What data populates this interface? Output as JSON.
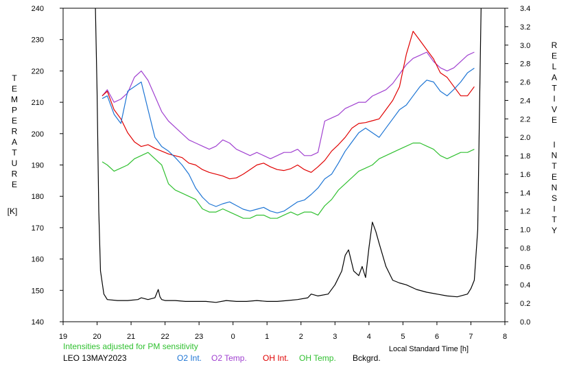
{
  "colors": {
    "o2_int": "#1c74d4",
    "o2_temp": "#a040d0",
    "oh_int": "#e00000",
    "oh_temp": "#30c030",
    "bckgrd": "#000000",
    "note": "#30c030"
  },
  "chart_data": {
    "type": "line",
    "left_axis": {
      "label_letters": [
        "T",
        "E",
        "M",
        "P",
        "E",
        "R",
        "A",
        "T",
        "U",
        "R",
        "E"
      ],
      "unit": "[K]",
      "ylim": [
        140,
        240
      ],
      "ticks": [
        "140",
        "150",
        "160",
        "170",
        "180",
        "190",
        "200",
        "210",
        "220",
        "230",
        "240"
      ]
    },
    "right_axis": {
      "label_letters_1": [
        "R",
        "E",
        "L",
        "A",
        "T",
        "I",
        "V",
        "E"
      ],
      "label_letters_2": [
        "I",
        "N",
        "T",
        "E",
        "N",
        "S",
        "I",
        "T",
        "Y"
      ],
      "ylim": [
        0.0,
        3.4
      ],
      "ticks": [
        "0.0",
        "0.2",
        "0.4",
        "0.6",
        "0.8",
        "1.0",
        "1.2",
        "1.4",
        "1.6",
        "1.8",
        "2.0",
        "2.2",
        "2.4",
        "2.6",
        "2.8",
        "3.0",
        "3.2",
        "3.4"
      ]
    },
    "x_axis": {
      "label": "Local Standard Time [h]",
      "xlim": [
        19,
        32
      ],
      "ticks": [
        "19",
        "20",
        "21",
        "22",
        "23",
        "0",
        "1",
        "2",
        "3",
        "4",
        "5",
        "6",
        "7",
        "8"
      ]
    },
    "note": "Intensities adjusted for PM sensitivity",
    "station": "LEO 13MAY2023",
    "legend": [
      "O2 Int.",
      "O2 Temp.",
      "OH Int.",
      "OH Temp.",
      "Bckgrd."
    ],
    "series": [
      {
        "name": "O2 Temp.",
        "axis": "left",
        "x": [
          20.15,
          20.3,
          20.5,
          20.7,
          20.9,
          21.1,
          21.3,
          21.5,
          21.7,
          21.9,
          22.1,
          22.3,
          22.5,
          22.7,
          22.9,
          23.1,
          23.3,
          23.5,
          23.7,
          23.9,
          24.1,
          24.3,
          24.5,
          24.7,
          24.9,
          25.1,
          25.3,
          25.5,
          25.7,
          25.9,
          26.1,
          26.3,
          26.5,
          26.7,
          26.9,
          27.1,
          27.3,
          27.5,
          27.7,
          27.9,
          28.1,
          28.3,
          28.5,
          28.7,
          28.9,
          29.1,
          29.3,
          29.5,
          29.7,
          29.9,
          30.1,
          30.3,
          30.5,
          30.7,
          30.9,
          31.1
        ],
        "y": [
          212,
          214,
          210,
          211,
          213,
          218,
          220,
          217,
          212,
          207,
          204,
          202,
          200,
          198,
          197,
          196,
          195,
          196,
          198,
          197,
          195,
          194,
          193,
          194,
          193,
          192,
          193,
          194,
          194,
          195,
          193,
          193,
          194,
          204,
          205,
          206,
          208,
          209,
          210,
          210,
          212,
          213,
          214,
          216,
          219,
          222,
          224,
          225,
          226,
          223,
          221,
          220,
          221,
          223,
          225,
          226
        ]
      },
      {
        "name": "OH Int.",
        "axis": "right",
        "x": [
          20.15,
          20.3,
          20.5,
          20.7,
          20.9,
          21.1,
          21.3,
          21.5,
          21.7,
          21.9,
          22.1,
          22.3,
          22.5,
          22.7,
          22.9,
          23.1,
          23.3,
          23.5,
          23.7,
          23.9,
          24.1,
          24.3,
          24.5,
          24.7,
          24.9,
          25.1,
          25.3,
          25.5,
          25.7,
          25.9,
          26.1,
          26.3,
          26.5,
          26.7,
          26.9,
          27.1,
          27.3,
          27.5,
          27.7,
          27.9,
          28.1,
          28.3,
          28.5,
          28.7,
          28.9,
          29.1,
          29.3,
          29.5,
          29.7,
          29.9,
          30.1,
          30.3,
          30.5,
          30.7,
          30.9,
          31.1
        ],
        "y": [
          2.45,
          2.5,
          2.3,
          2.2,
          2.05,
          1.95,
          1.9,
          1.92,
          1.88,
          1.85,
          1.82,
          1.8,
          1.78,
          1.72,
          1.7,
          1.65,
          1.62,
          1.6,
          1.58,
          1.55,
          1.56,
          1.6,
          1.65,
          1.7,
          1.72,
          1.68,
          1.65,
          1.64,
          1.66,
          1.7,
          1.65,
          1.62,
          1.68,
          1.75,
          1.85,
          1.92,
          2.0,
          2.1,
          2.15,
          2.16,
          2.18,
          2.2,
          2.3,
          2.4,
          2.55,
          2.9,
          3.15,
          3.05,
          2.95,
          2.85,
          2.7,
          2.65,
          2.55,
          2.45,
          2.45,
          2.55
        ]
      },
      {
        "name": "O2 Int.",
        "axis": "right",
        "x": [
          20.15,
          20.3,
          20.5,
          20.7,
          20.9,
          21.1,
          21.3,
          21.5,
          21.7,
          21.9,
          22.1,
          22.3,
          22.5,
          22.7,
          22.9,
          23.1,
          23.3,
          23.5,
          23.7,
          23.9,
          24.1,
          24.3,
          24.5,
          24.7,
          24.9,
          25.1,
          25.3,
          25.5,
          25.7,
          25.9,
          26.1,
          26.3,
          26.5,
          26.7,
          26.9,
          27.1,
          27.3,
          27.5,
          27.7,
          27.9,
          28.1,
          28.3,
          28.5,
          28.7,
          28.9,
          29.1,
          29.3,
          29.5,
          29.7,
          29.9,
          30.1,
          30.3,
          30.5,
          30.7,
          30.9,
          31.1
        ],
        "y": [
          2.42,
          2.45,
          2.25,
          2.15,
          2.5,
          2.55,
          2.6,
          2.3,
          2.0,
          1.9,
          1.85,
          1.78,
          1.7,
          1.6,
          1.45,
          1.35,
          1.28,
          1.25,
          1.28,
          1.3,
          1.26,
          1.22,
          1.2,
          1.22,
          1.24,
          1.2,
          1.18,
          1.2,
          1.25,
          1.3,
          1.32,
          1.38,
          1.45,
          1.55,
          1.6,
          1.72,
          1.85,
          1.95,
          2.05,
          2.1,
          2.05,
          2.0,
          2.1,
          2.2,
          2.3,
          2.35,
          2.45,
          2.55,
          2.62,
          2.6,
          2.5,
          2.45,
          2.52,
          2.6,
          2.7,
          2.75
        ]
      },
      {
        "name": "OH Temp.",
        "axis": "left",
        "x": [
          20.15,
          20.3,
          20.5,
          20.7,
          20.9,
          21.1,
          21.3,
          21.5,
          21.7,
          21.9,
          22.1,
          22.3,
          22.5,
          22.7,
          22.9,
          23.1,
          23.3,
          23.5,
          23.7,
          23.9,
          24.1,
          24.3,
          24.5,
          24.7,
          24.9,
          25.1,
          25.3,
          25.5,
          25.7,
          25.9,
          26.1,
          26.3,
          26.5,
          26.7,
          26.9,
          27.1,
          27.3,
          27.5,
          27.7,
          27.9,
          28.1,
          28.3,
          28.5,
          28.7,
          28.9,
          29.1,
          29.3,
          29.5,
          29.7,
          29.9,
          30.1,
          30.3,
          30.5,
          30.7,
          30.9,
          31.1
        ],
        "y": [
          191,
          190,
          188,
          189,
          190,
          192,
          193,
          194,
          192,
          190,
          184,
          182,
          181,
          180,
          179,
          176,
          175,
          175,
          176,
          175,
          174,
          173,
          173,
          174,
          174,
          173,
          173,
          174,
          175,
          174,
          175,
          175,
          174,
          177,
          179,
          182,
          184,
          186,
          188,
          189,
          190,
          192,
          193,
          194,
          195,
          196,
          197,
          197,
          196,
          195,
          193,
          192,
          193,
          194,
          194,
          195
        ]
      },
      {
        "name": "Bckgrd.",
        "axis": "right",
        "x": [
          19.95,
          20.0,
          20.05,
          20.1,
          20.2,
          20.3,
          20.6,
          20.9,
          21.2,
          21.3,
          21.5,
          21.7,
          21.8,
          21.85,
          21.9,
          22.0,
          22.3,
          22.6,
          22.9,
          23.2,
          23.5,
          23.8,
          24.1,
          24.4,
          24.7,
          25.0,
          25.3,
          25.6,
          25.9,
          26.2,
          26.3,
          26.5,
          26.8,
          27.0,
          27.2,
          27.3,
          27.4,
          27.55,
          27.7,
          27.8,
          27.9,
          28.0,
          28.1,
          28.2,
          28.3,
          28.5,
          28.7,
          28.9,
          29.1,
          29.4,
          29.7,
          30.0,
          30.3,
          30.6,
          30.9,
          31.0,
          31.1,
          31.2,
          31.25,
          31.3
        ],
        "y": [
          3.4,
          2.5,
          1.2,
          0.55,
          0.3,
          0.24,
          0.23,
          0.23,
          0.24,
          0.26,
          0.24,
          0.26,
          0.35,
          0.27,
          0.24,
          0.23,
          0.23,
          0.22,
          0.22,
          0.22,
          0.21,
          0.23,
          0.22,
          0.22,
          0.23,
          0.22,
          0.22,
          0.23,
          0.24,
          0.26,
          0.3,
          0.28,
          0.3,
          0.4,
          0.55,
          0.72,
          0.78,
          0.55,
          0.5,
          0.6,
          0.48,
          0.8,
          1.08,
          0.98,
          0.85,
          0.6,
          0.45,
          0.42,
          0.4,
          0.35,
          0.32,
          0.3,
          0.28,
          0.27,
          0.3,
          0.36,
          0.45,
          1.0,
          2.2,
          3.4
        ]
      }
    ]
  }
}
